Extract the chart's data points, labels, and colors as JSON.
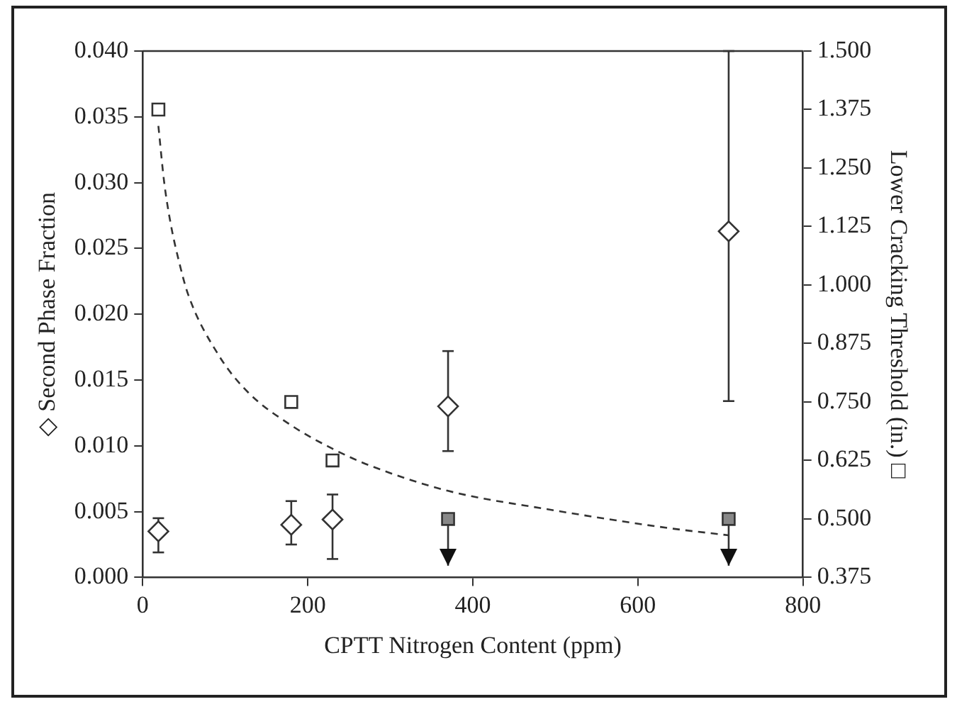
{
  "chart_data": {
    "type": "scatter",
    "xlabel": "CPTT Nitrogen Content (ppm)",
    "ylabel": "◇ Second Phase Fraction",
    "y2label": "Lower Cracking Threshold (in.) □",
    "xlim": [
      0,
      800
    ],
    "xticks": [
      0,
      200,
      400,
      600,
      800
    ],
    "ylim": [
      0,
      0.04
    ],
    "yticks": [
      {
        "value": 0,
        "label": "0.000"
      },
      {
        "value": 0.005,
        "label": "0.005"
      },
      {
        "value": 0.01,
        "label": "0.010"
      },
      {
        "value": 0.015,
        "label": "0.015"
      },
      {
        "value": 0.02,
        "label": "0.020"
      },
      {
        "value": 0.025,
        "label": "0.025"
      },
      {
        "value": 0.03,
        "label": "0.030"
      },
      {
        "value": 0.035,
        "label": "0.035"
      },
      {
        "value": 0.04,
        "label": "0.040"
      }
    ],
    "y2lim": [
      0.375,
      1.5
    ],
    "y2ticks": [
      0.375,
      {
        "value": 0.5,
        "label": "0.500"
      },
      0.625,
      {
        "value": 0.75,
        "label": "0.750"
      },
      0.875,
      {
        "value": 1,
        "label": "1.000"
      },
      1.125,
      {
        "value": 1.25,
        "label": "1.250"
      },
      1.375,
      {
        "value": 1.5,
        "label": "1.500"
      }
    ],
    "grid": false,
    "legend": false,
    "series": [
      {
        "color": "#333333",
        "marker": "diamond",
        "x": [
          19,
          180,
          230,
          370,
          710
        ],
        "values": [
          0.0035,
          0.004,
          0.0044,
          0.013,
          0.0263
        ],
        "errors": [
          [
            0.0019,
            0.0045
          ],
          [
            0.0025,
            0.0058
          ],
          [
            0.0014,
            0.0063
          ],
          [
            0.0096,
            0.0172
          ],
          [
            0.0134,
            0.04
          ]
        ]
      },
      {
        "color": "#333333",
        "marker": "square",
        "axis": "y2",
        "x": [
          19,
          180,
          230
        ],
        "values": [
          1.375,
          0.75,
          0.625
        ]
      },
      {
        "color": "#888888",
        "marker": "square",
        "axis": "y2",
        "x": [
          370,
          710
        ],
        "values": [
          0.5,
          0.5
        ],
        "errors": [
          [
            0.4,
            0.5
          ],
          [
            0.4,
            0.5
          ]
        ]
      },
      {
        "type": "line",
        "color": "#333333",
        "marker": "none",
        "line_style": "dashed",
        "axis": "y2",
        "x": [
          19,
          26,
          34,
          44,
          55,
          92,
          128,
          180,
          230,
          274,
          370,
          493,
          639,
          710
        ],
        "values": [
          1.34,
          1.22,
          1.13,
          1.05,
          0.98,
          0.85,
          0.77,
          0.7,
          0.65,
          0.615,
          0.56,
          0.52,
          0.48,
          0.465
        ]
      }
    ]
  }
}
